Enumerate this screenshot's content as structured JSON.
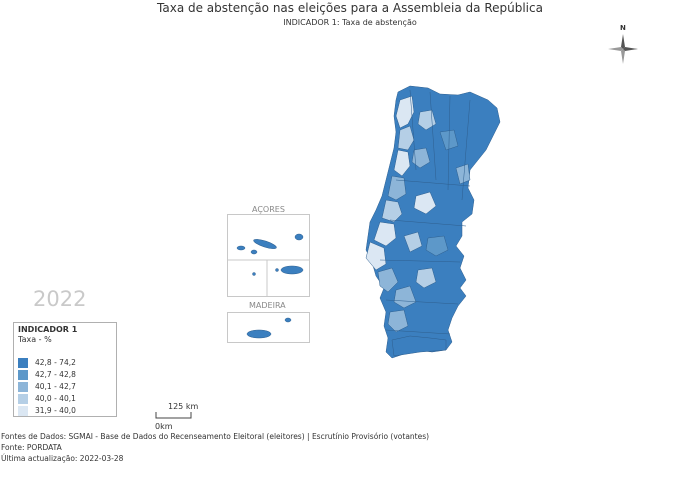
{
  "title": "Taxa de abstenção nas eleições para a Assembleia da República",
  "subtitle": "INDICADOR 1: Taxa de abstenção",
  "compass_label": "N",
  "year": "2022",
  "legend": {
    "title": "INDICADOR 1",
    "subtitle": "Taxa - %",
    "items": [
      {
        "label": "42,8 - 74,2",
        "color": "#3b7fbf"
      },
      {
        "label": "42,7 - 42,8",
        "color": "#5d98c9"
      },
      {
        "label": "40,1 - 42,7",
        "color": "#8db5d8"
      },
      {
        "label": "40,0 - 40,1",
        "color": "#b5cfe6"
      },
      {
        "label": "31,9 - 40,0",
        "color": "#dbe7f3"
      }
    ]
  },
  "insets": {
    "acores_label": "AÇORES",
    "madeira_label": "MADEIRA"
  },
  "scale": {
    "label": "125 km",
    "zero": "0km"
  },
  "footer": {
    "sources": "Fontes de Dados: SGMAI - Base de Dados do Recenseamento Eleitoral (eleitores) | Escrutínio Provisório (votantes)",
    "source": "Fonte: PORDATA",
    "updated": "Última actualização: 2022-03-28"
  },
  "colors": {
    "dark": "#3b7fbf",
    "mid_dark": "#5d98c9",
    "mid": "#8db5d8",
    "light": "#b5cfe6",
    "lightest": "#dbe7f3",
    "border": "#2e5f8f"
  }
}
